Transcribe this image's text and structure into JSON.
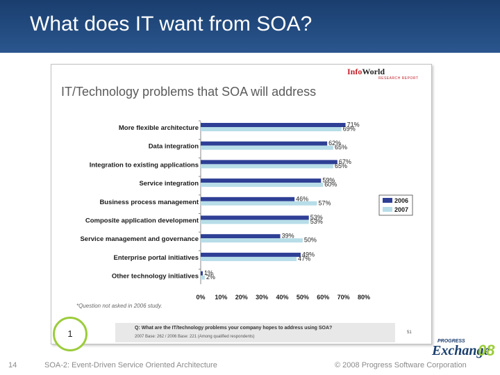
{
  "slide": {
    "title": "What does IT want from SOA?",
    "page_number": "14",
    "footer_left": "SOA-2: Event-Driven Service Oriented Architecture",
    "footer_right": "© 2008 Progress Software Corporation"
  },
  "brand": {
    "infoworld_red": "Info",
    "infoworld_black": "World",
    "report": "RESEARCH REPORT",
    "logo_top": "PROGRESS",
    "logo_main": "Exchange",
    "logo_year": "08"
  },
  "colors": {
    "header": "#1f4678",
    "series_2006": "#2e3f95",
    "series_2007": "#b7dde8",
    "accent_green": "#9ccc3c"
  },
  "callout": {
    "number": "1"
  },
  "question": {
    "text": "Q: What are the IT/technology problems your company hopes to address using SOA?",
    "base": "2007 Base: 262 / 2006 Base: 221 (Among qualified respondents)",
    "page": "51"
  },
  "chart_data": {
    "type": "bar",
    "orientation": "horizontal",
    "title": "IT/Technology problems that SOA will address",
    "categories": [
      "More flexible architecture",
      "Data integration",
      "Integration to existing applications",
      "Service integration",
      "Business process management",
      "Composite application development",
      "Service management and governance",
      "Enterprise portal initiatives",
      "Other technology initiatives"
    ],
    "series": [
      {
        "name": "2006",
        "values": [
          71,
          62,
          67,
          59,
          46,
          53,
          39,
          49,
          1
        ],
        "labels": [
          "71%",
          "62%",
          "67%",
          "59%",
          "46%",
          "53%",
          "39%",
          "49%",
          "1%"
        ]
      },
      {
        "name": "2007",
        "values": [
          69,
          65,
          65,
          60,
          57,
          53,
          50,
          47,
          2
        ],
        "labels": [
          "69%",
          "65%",
          "65%",
          "60%",
          "57%",
          "53%",
          "50%",
          "47%",
          "2%"
        ]
      }
    ],
    "xlim": [
      0,
      80
    ],
    "xticks": [
      "0%",
      "10%",
      "20%",
      "30%",
      "40%",
      "50%",
      "60%",
      "70%",
      "80%"
    ],
    "legend_position": "right",
    "footnote": "*Question not asked in 2006 study."
  }
}
